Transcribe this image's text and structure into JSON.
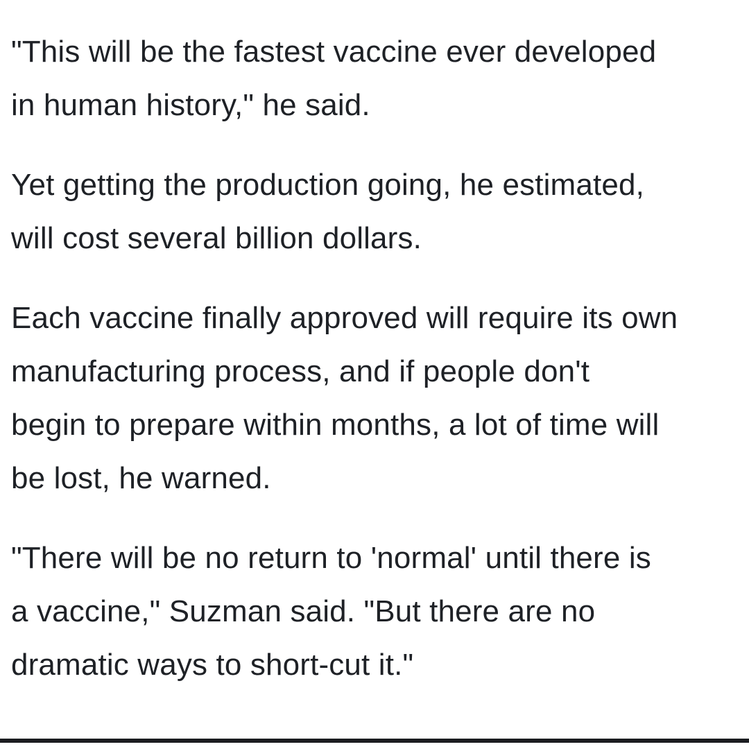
{
  "article": {
    "paragraphs": [
      {
        "lines": [
          "\"This will be the fastest vaccine ever developed",
          "in human history,\" he said."
        ]
      },
      {
        "lines": [
          "Yet getting the production going, he estimated,",
          "will cost several billion dollars."
        ]
      },
      {
        "lines": [
          "Each vaccine finally approved will require its own",
          "manufacturing process, and if people don't",
          "begin to prepare within months, a lot of time will",
          "be lost, he warned."
        ]
      },
      {
        "lines": [
          "\"There will be no return to 'normal' until there is",
          "a vaccine,\" Suzman said. \"But there are no",
          "dramatic ways to short-cut it.\""
        ]
      }
    ]
  }
}
